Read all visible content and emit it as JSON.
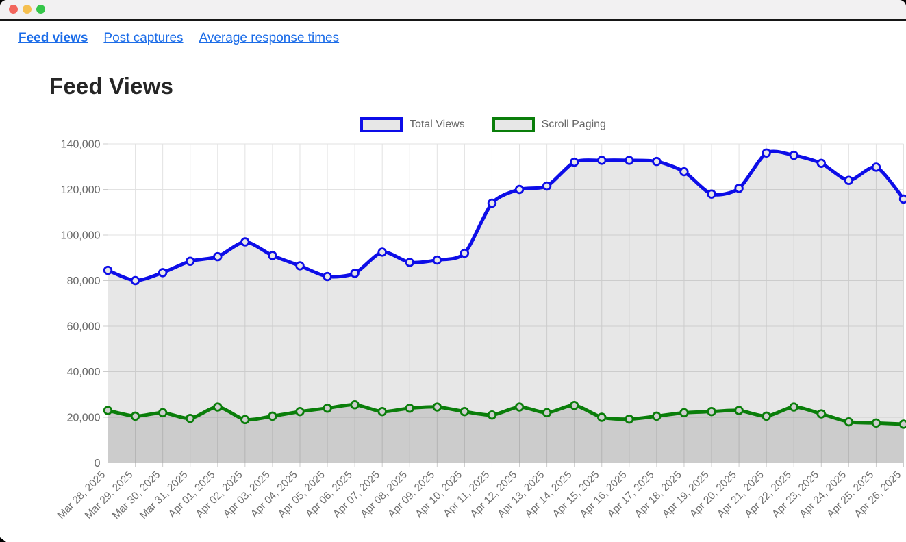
{
  "window": {
    "titlebar_buttons": [
      "close",
      "minimize",
      "zoom"
    ]
  },
  "nav": {
    "links": [
      {
        "label": "Feed views",
        "active": true
      },
      {
        "label": "Post captures",
        "active": false
      },
      {
        "label": "Average response times",
        "active": false
      }
    ]
  },
  "page": {
    "title": "Feed Views"
  },
  "chart_data": {
    "type": "line",
    "title": "Feed Views",
    "legend_position": "top",
    "grid": true,
    "area_fill": "overlapping translucent gray under each line",
    "ylim": [
      0,
      140000
    ],
    "y_tick_step": 20000,
    "y_tick_labels": [
      "0",
      "20,000",
      "40,000",
      "60,000",
      "80,000",
      "100,000",
      "120,000",
      "140,000"
    ],
    "categories": [
      "Mar 28, 2025",
      "Mar 29, 2025",
      "Mar 30, 2025",
      "Mar 31, 2025",
      "Apr 01, 2025",
      "Apr 02, 2025",
      "Apr 03, 2025",
      "Apr 04, 2025",
      "Apr 05, 2025",
      "Apr 06, 2025",
      "Apr 07, 2025",
      "Apr 08, 2025",
      "Apr 09, 2025",
      "Apr 10, 2025",
      "Apr 11, 2025",
      "Apr 12, 2025",
      "Apr 13, 2025",
      "Apr 14, 2025",
      "Apr 15, 2025",
      "Apr 16, 2025",
      "Apr 17, 2025",
      "Apr 18, 2025",
      "Apr 19, 2025",
      "Apr 20, 2025",
      "Apr 21, 2025",
      "Apr 22, 2025",
      "Apr 23, 2025",
      "Apr 24, 2025",
      "Apr 25, 2025",
      "Apr 26, 2025"
    ],
    "series": [
      {
        "name": "Total Views",
        "color": "#0d0de8",
        "marker_fill": "#e7e7e7",
        "values": [
          84500,
          80000,
          83500,
          88500,
          90500,
          97000,
          91000,
          86500,
          81800,
          83200,
          92500,
          88000,
          89000,
          92000,
          114000,
          120000,
          121500,
          132000,
          132800,
          132800,
          132300,
          127800,
          118000,
          120500,
          136000,
          135000,
          131500,
          124000,
          129800,
          115800
        ]
      },
      {
        "name": "Scroll Paging",
        "color": "#0a7e0a",
        "marker_fill": "#cfcfcf",
        "values": [
          23000,
          20500,
          22000,
          19500,
          24500,
          19000,
          20500,
          22500,
          24000,
          25500,
          22500,
          24000,
          24500,
          22500,
          21000,
          24500,
          22000,
          25200,
          20000,
          19200,
          20500,
          22000,
          22500,
          23000,
          20500,
          24500,
          21500,
          18000,
          17500,
          17000
        ]
      }
    ]
  },
  "colors": {
    "link_blue": "#1b6ce8",
    "axis_text": "#676767",
    "gridline": "#e2e2e2",
    "axis_line": "#cccccc"
  }
}
